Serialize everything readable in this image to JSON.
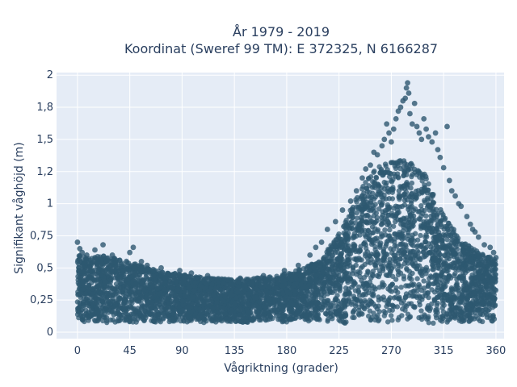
{
  "chart_data": {
    "type": "scatter",
    "title": [
      "År 1979 - 2019",
      "Koordinat (Sweref 99 TM): E 372325, N 6166287"
    ],
    "xlabel": "Vågriktning (grader)",
    "ylabel": "Signifikant våghöjd (m)",
    "xlim": [
      -18,
      367
    ],
    "ylim": [
      -0.05,
      2.02
    ],
    "xticks": [
      0,
      45,
      90,
      135,
      180,
      225,
      270,
      315,
      360
    ],
    "xtick_labels": [
      "0",
      "45",
      "90",
      "135",
      "180",
      "225",
      "270",
      "315",
      "360"
    ],
    "yticks": [
      0,
      0.25,
      0.5,
      0.75,
      1,
      1.25,
      1.5,
      1.75,
      2
    ],
    "ytick_labels": [
      "0",
      "0,25",
      "0,5",
      "0,75",
      "1",
      "1,2",
      "1,5",
      "1,8",
      "2"
    ],
    "grid": true,
    "legend": false,
    "colors": {
      "marker": "#2e5870",
      "plot_bg": "#e5ecf6",
      "grid": "#ffffff"
    },
    "envelope": {
      "direction": [
        0,
        10,
        20,
        30,
        45,
        60,
        75,
        90,
        105,
        120,
        135,
        150,
        165,
        180,
        195,
        210,
        220,
        230,
        240,
        250,
        260,
        270,
        280,
        290,
        300,
        310,
        320,
        330,
        340,
        350,
        360
      ],
      "max_height": [
        0.6,
        0.58,
        0.6,
        0.58,
        0.55,
        0.5,
        0.47,
        0.45,
        0.43,
        0.42,
        0.41,
        0.42,
        0.43,
        0.46,
        0.5,
        0.58,
        0.7,
        0.86,
        1.05,
        1.2,
        1.3,
        1.32,
        1.35,
        1.3,
        1.22,
        1.0,
        0.85,
        0.72,
        0.65,
        0.6,
        0.58
      ],
      "min_height": [
        0.08,
        0.07,
        0.08,
        0.07,
        0.08,
        0.07,
        0.08,
        0.08,
        0.07,
        0.08,
        0.08,
        0.07,
        0.08,
        0.08,
        0.07,
        0.08,
        0.08,
        0.07,
        0.08,
        0.08,
        0.07,
        0.08,
        0.07,
        0.08,
        0.07,
        0.06,
        0.07,
        0.08,
        0.07,
        0.07,
        0.08
      ]
    },
    "outliers": {
      "x": [
        0,
        2,
        4,
        8,
        15,
        22,
        30,
        45,
        48,
        55,
        60,
        72,
        88,
        98,
        112,
        140,
        160,
        178,
        190,
        200,
        205,
        210,
        215,
        222,
        228,
        235,
        240,
        245,
        248,
        252,
        255,
        258,
        262,
        264,
        266,
        268,
        270,
        272,
        274,
        276,
        278,
        280,
        282,
        283,
        284,
        285,
        286,
        288,
        290,
        292,
        294,
        296,
        298,
        300,
        302,
        305,
        308,
        310,
        312,
        315,
        318,
        320,
        322,
        325,
        328,
        330,
        335,
        338,
        340,
        342,
        345,
        350,
        355,
        358,
        360
      ],
      "y": [
        0.7,
        0.65,
        0.62,
        0.6,
        0.64,
        0.68,
        0.6,
        0.62,
        0.66,
        0.55,
        0.52,
        0.5,
        0.48,
        0.46,
        0.44,
        0.42,
        0.44,
        0.48,
        0.52,
        0.6,
        0.66,
        0.7,
        0.8,
        0.86,
        0.95,
        1.02,
        1.1,
        1.2,
        1.27,
        1.3,
        1.4,
        1.38,
        1.45,
        1.5,
        1.62,
        1.55,
        1.48,
        1.58,
        1.66,
        1.72,
        1.75,
        1.8,
        1.82,
        1.9,
        1.94,
        1.86,
        1.7,
        1.62,
        1.78,
        1.6,
        1.55,
        1.5,
        1.66,
        1.58,
        1.52,
        1.48,
        1.55,
        1.42,
        1.36,
        1.28,
        1.6,
        1.18,
        1.1,
        1.06,
        1.0,
        0.98,
        0.9,
        0.84,
        0.8,
        0.78,
        0.74,
        0.68,
        0.66,
        0.62,
        0.58
      ]
    }
  }
}
